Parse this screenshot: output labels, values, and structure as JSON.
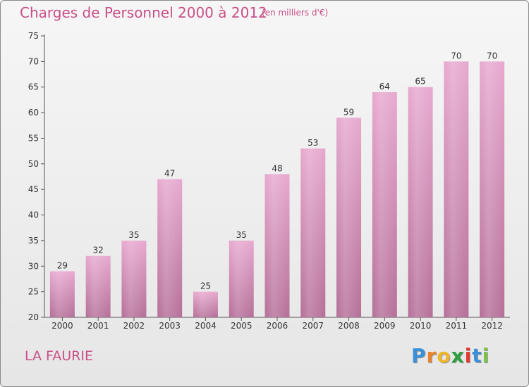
{
  "title": "Charges de Personnel 2000 à 2012",
  "unit_note": "(en milliers d'€)",
  "commune": "LA FAURIE",
  "logo": {
    "letters": [
      "P",
      "r",
      "o",
      "x",
      "i",
      "t",
      "i"
    ],
    "colors": [
      "#3b8fd6",
      "#e8832a",
      "#f0b62a",
      "#2e9e3f",
      "#e0392f",
      "#3b8fd6",
      "#7cc242"
    ]
  },
  "colors": {
    "bar_top": "#e7a8cf",
    "bar_bottom": "#b56f98",
    "title": "#c94f87"
  },
  "chart_data": {
    "type": "bar",
    "title": "Charges de Personnel 2000 à 2012",
    "subtitle": "(en milliers d'€)",
    "categories": [
      "2000",
      "2001",
      "2002",
      "2003",
      "2004",
      "2005",
      "2006",
      "2007",
      "2008",
      "2009",
      "2010",
      "2011",
      "2012"
    ],
    "values": [
      29,
      32,
      35,
      47,
      25,
      35,
      48,
      53,
      59,
      64,
      65,
      70,
      70
    ],
    "ylim": [
      20,
      75
    ],
    "yticks": [
      20,
      25,
      30,
      35,
      40,
      45,
      50,
      55,
      60,
      65,
      70,
      75
    ],
    "grid": false,
    "xlabel": "",
    "ylabel": ""
  }
}
